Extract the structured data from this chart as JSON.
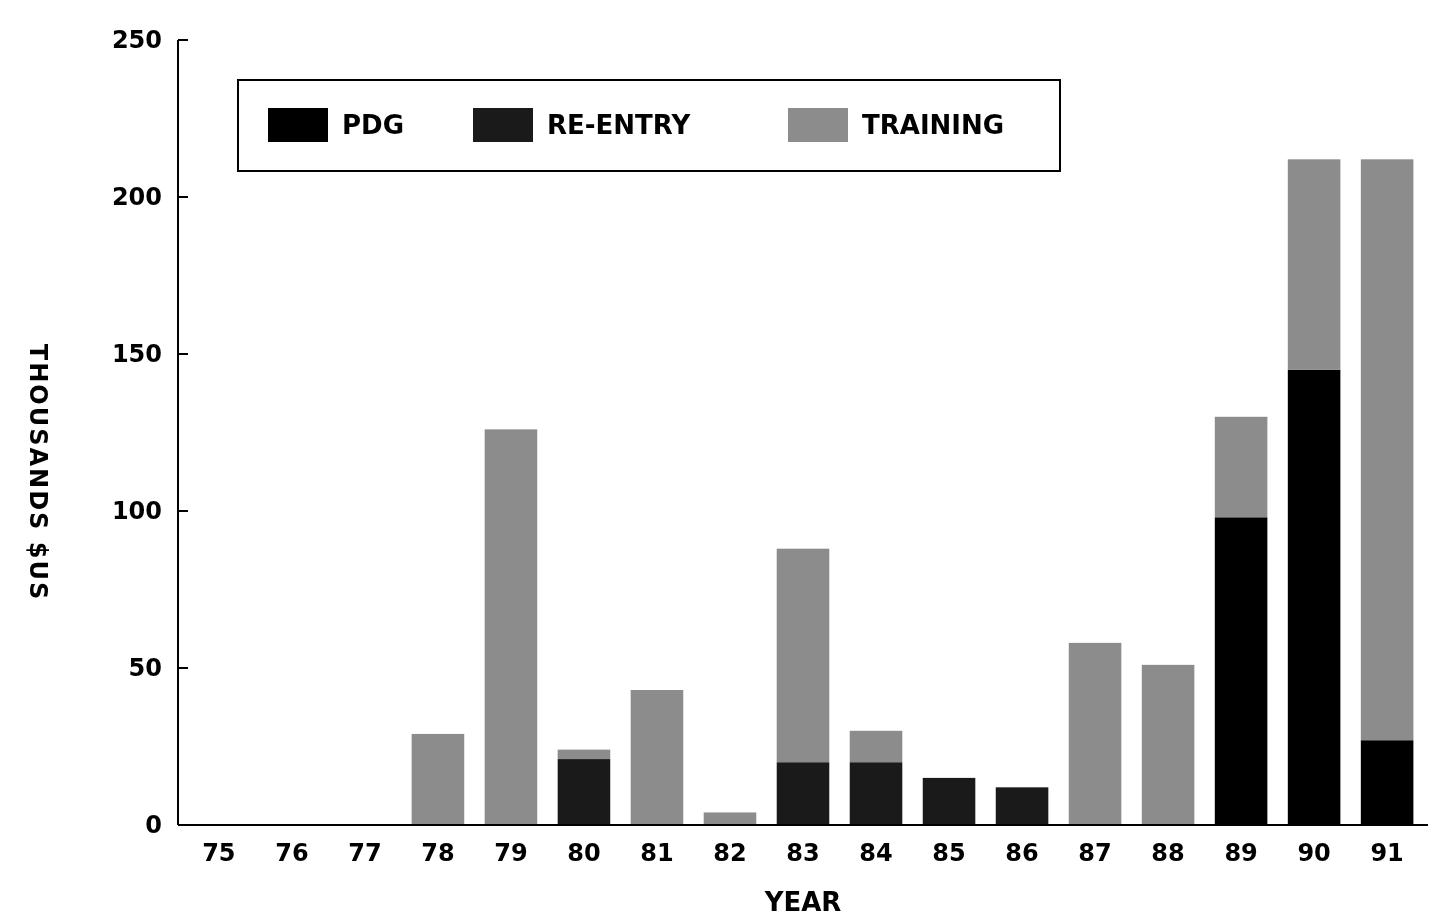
{
  "chart_data": {
    "type": "bar",
    "stacked": true,
    "xlabel": "YEAR",
    "ylabel": "THOUSANDS $US",
    "categories": [
      "75",
      "76",
      "77",
      "78",
      "79",
      "80",
      "81",
      "82",
      "83",
      "84",
      "85",
      "86",
      "87",
      "88",
      "89",
      "90",
      "91"
    ],
    "series": [
      {
        "name": "PDG",
        "color": "#000000",
        "values": [
          0,
          0,
          0,
          0,
          0,
          0,
          0,
          0,
          0,
          0,
          0,
          0,
          0,
          0,
          98,
          145,
          27
        ]
      },
      {
        "name": "RE-ENTRY",
        "color": "#1a1a1a",
        "values": [
          0,
          0,
          0,
          0,
          0,
          21,
          0,
          0,
          20,
          20,
          15,
          12,
          0,
          0,
          0,
          0,
          0
        ]
      },
      {
        "name": "TRAINING",
        "color": "#8c8c8c",
        "values": [
          0,
          0,
          0,
          29,
          126,
          3,
          43,
          4,
          68,
          10,
          0,
          0,
          58,
          51,
          32,
          67,
          185
        ]
      }
    ],
    "ylim": [
      0,
      250
    ],
    "yticks": [
      0,
      50,
      100,
      150,
      200,
      250
    ],
    "grid": false,
    "legend": "top left"
  }
}
